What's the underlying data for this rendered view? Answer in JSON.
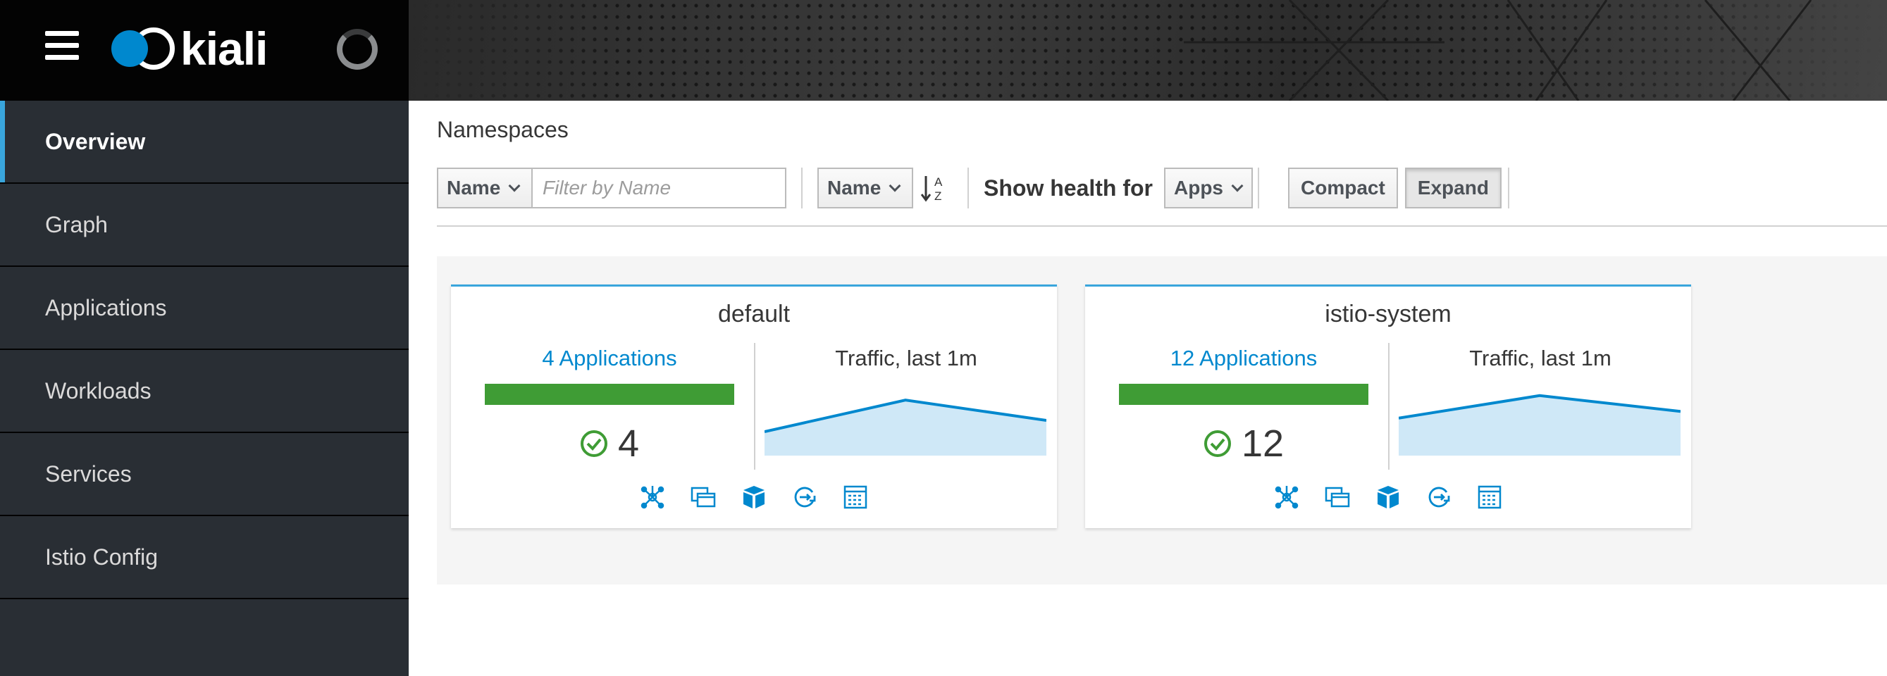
{
  "brand": {
    "name": "kiali"
  },
  "sidebar": {
    "items": [
      {
        "label": "Overview"
      },
      {
        "label": "Graph"
      },
      {
        "label": "Applications"
      },
      {
        "label": "Workloads"
      },
      {
        "label": "Services"
      },
      {
        "label": "Istio Config"
      }
    ],
    "active": "Overview"
  },
  "page": {
    "title": "Namespaces"
  },
  "toolbar": {
    "filter_type": "Name",
    "filter_placeholder": "Filter by Name",
    "sort_field": "Name",
    "show_health_label": "Show health for",
    "health_type": "Apps",
    "compact_label": "Compact",
    "expand_label": "Expand"
  },
  "namespaces": [
    {
      "name": "default",
      "apps_link": "4 Applications",
      "healthy_count": "4",
      "health_fraction": 1.0,
      "traffic_title": "Traffic, last 1m",
      "traffic_series": [
        0.1,
        0.38,
        0.2
      ]
    },
    {
      "name": "istio-system",
      "apps_link": "12 Applications",
      "healthy_count": "12",
      "health_fraction": 1.0,
      "traffic_title": "Traffic, last 1m",
      "traffic_series": [
        0.22,
        0.42,
        0.28
      ]
    }
  ],
  "card_link_icons": [
    "topology-icon",
    "applications-icon",
    "workloads-icon",
    "services-icon",
    "istio-config-icon"
  ],
  "colors": {
    "accent": "#0088ce",
    "healthy": "#3f9c35",
    "sidebar_bg": "#292e34",
    "active_bar": "#39a5dc"
  }
}
